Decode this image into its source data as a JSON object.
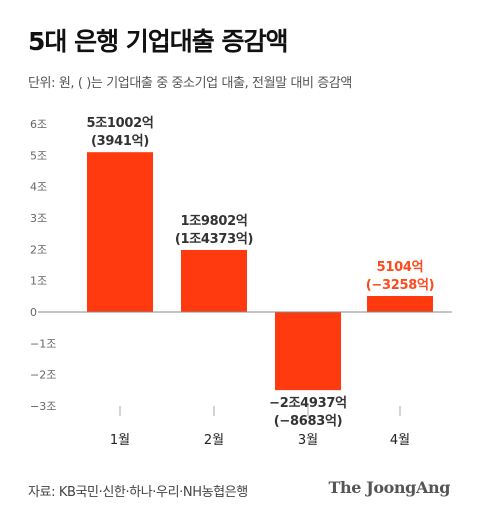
{
  "header": {
    "title": "5대 은행 기업대출 증감액",
    "subtitle": "단위: 원, ( )는 기업대출 중 중소기업 대출, 전월말 대비 증감액"
  },
  "footer": {
    "source": "자료: KB국민·신한·하나·우리·NH농협은행",
    "brand": "The JoongAng"
  },
  "colors": {
    "bar": "#ff3a0e",
    "highlight_label": "#ff4a1c",
    "axis": "#888888"
  },
  "chart_data": {
    "type": "bar",
    "title": "5대 은행 기업대출 증감액",
    "categories": [
      "1월",
      "2월",
      "3월",
      "4월"
    ],
    "values_jo": [
      5.1002,
      1.9802,
      -2.4937,
      0.5104
    ],
    "labels": [
      "5조1002억",
      "1조9802억",
      "−2조4937억",
      "5104억"
    ],
    "sub_labels": [
      "(3941억)",
      "(1조4373억)",
      "(−8683억)",
      "(−3258억)"
    ],
    "highlight": [
      false,
      false,
      false,
      true
    ],
    "ylim": [
      -3,
      6
    ],
    "yticks": [
      6,
      5,
      4,
      3,
      2,
      1,
      0,
      -1,
      -2,
      -3
    ],
    "ytick_labels": [
      "6조",
      "5조",
      "4조",
      "3조",
      "2조",
      "1조",
      "0",
      "−1조",
      "−2조",
      "−3조"
    ],
    "xlabel": "",
    "ylabel": ""
  }
}
